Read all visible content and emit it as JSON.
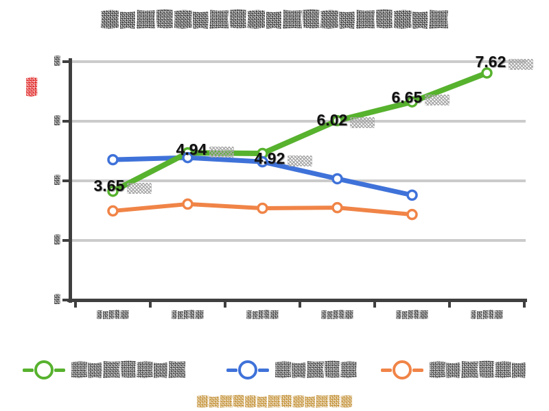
{
  "title": "某高校毕业生去向结构历年变化趋势分析图",
  "y_axis": {
    "unit_label": "%",
    "tick_labels": [
      "8",
      "6",
      "4",
      "2",
      "0"
    ]
  },
  "caption": "数据来源：学校就业质量报告",
  "chart_data": {
    "type": "line",
    "categories": [
      "2016届",
      "2017届",
      "2018届",
      "2019届",
      "2020届",
      "2021届"
    ],
    "series": [
      {
        "name": "毕业生就业比例",
        "color": "#57b22e",
        "values": [
          3.65,
          4.94,
          4.92,
          6.02,
          6.65,
          7.62
        ],
        "labels": [
          "3.65",
          "4.94",
          "4.92",
          "6.02",
          "6.65",
          "7.62"
        ]
      },
      {
        "name": "国内升学率",
        "color": "#3f72d9",
        "values": [
          4.71,
          4.78,
          4.64,
          4.07,
          3.52,
          null
        ]
      },
      {
        "name": "自由职业占比",
        "color": "#f08447",
        "values": [
          2.99,
          3.22,
          3.08,
          3.1,
          2.87,
          null
        ]
      }
    ],
    "title": "某高校毕业生去向结构历年变化趋势分析图",
    "xlabel": "",
    "ylabel": "%",
    "ylim": [
      0,
      8
    ],
    "grid": true,
    "legend_position": "bottom"
  }
}
